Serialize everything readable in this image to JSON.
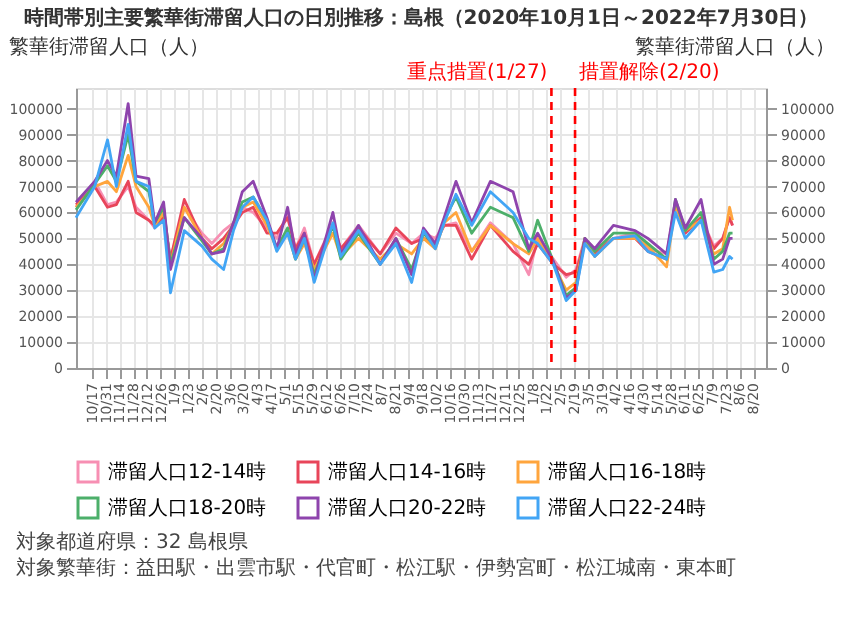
{
  "chart_data": {
    "type": "line",
    "title": "時間帯別主要繁華街滞留人口の日別推移：島根（2020年10月1日～2022年7月30日）",
    "ylabel": "繁華街滞留人口（人）",
    "y2label": "繁華街滞留人口（人）",
    "x": [
      "2020-10-01",
      "2020-10-20",
      "2020-11-02",
      "2020-11-11",
      "2020-11-23",
      "2020-12-01",
      "2020-12-14",
      "2020-12-20",
      "2020-12-29",
      "2021-01-05",
      "2021-01-19",
      "2021-02-06",
      "2021-02-16",
      "2021-02-28",
      "2021-03-10",
      "2021-03-19",
      "2021-03-30",
      "2021-04-13",
      "2021-04-23",
      "2021-05-04",
      "2021-05-12",
      "2021-05-21",
      "2021-05-31",
      "2021-06-19",
      "2021-06-27",
      "2021-07-15",
      "2021-08-06",
      "2021-08-22",
      "2021-09-07",
      "2021-09-19",
      "2021-10-01",
      "2021-10-10",
      "2021-10-22",
      "2021-11-07",
      "2021-11-26",
      "2021-12-19",
      "2022-01-04",
      "2022-01-13",
      "2022-01-29",
      "2022-02-11",
      "2022-02-21",
      "2022-03-02",
      "2022-03-12",
      "2022-03-31",
      "2022-04-22",
      "2022-05-05",
      "2022-05-24",
      "2022-06-02",
      "2022-06-12",
      "2022-06-28",
      "2022-07-11",
      "2022-07-20",
      "2022-07-27",
      "2022-07-30"
    ],
    "series": [
      {
        "name": "滞留人口12-14時",
        "color": "#f78fb3",
        "values": [
          62000,
          72000,
          63000,
          64000,
          70000,
          62000,
          57000,
          54000,
          60000,
          42000,
          62000,
          52000,
          48000,
          53000,
          56000,
          62000,
          60000,
          54000,
          50000,
          60000,
          46000,
          54000,
          40000,
          56000,
          46000,
          55000,
          44000,
          52000,
          48000,
          52000,
          50000,
          55000,
          56000,
          45000,
          56000,
          48000,
          36000,
          50000,
          42000,
          35000,
          38000,
          50000,
          46000,
          50000,
          52000,
          46000,
          44000,
          62000,
          54000,
          58000,
          47000,
          50000,
          58000,
          55000
        ]
      },
      {
        "name": "滞留人口14-16時",
        "color": "#e8455a",
        "values": [
          63000,
          70000,
          62000,
          63000,
          72000,
          60000,
          57000,
          55000,
          58000,
          42000,
          65000,
          50000,
          46000,
          50000,
          55000,
          60000,
          62000,
          52000,
          52000,
          58000,
          46000,
          52000,
          40000,
          55000,
          46000,
          54000,
          44000,
          54000,
          48000,
          50000,
          48000,
          55000,
          55000,
          42000,
          55000,
          45000,
          40000,
          48000,
          40000,
          36000,
          37000,
          49000,
          44000,
          50000,
          50000,
          45000,
          42000,
          64000,
          52000,
          58000,
          46000,
          50000,
          58000,
          55000
        ]
      },
      {
        "name": "滞留人口16-18時",
        "color": "#ffa53d",
        "values": [
          62000,
          70000,
          72000,
          68000,
          82000,
          70000,
          62000,
          55000,
          60000,
          40000,
          62000,
          50000,
          44000,
          48000,
          55000,
          62000,
          64000,
          55000,
          46000,
          52000,
          42000,
          48000,
          38000,
          52000,
          43000,
          50000,
          42000,
          48000,
          44000,
          50000,
          46000,
          56000,
          60000,
          45000,
          55000,
          48000,
          44000,
          50000,
          40000,
          30000,
          33000,
          50000,
          43000,
          50000,
          50000,
          47000,
          39000,
          63000,
          53000,
          57000,
          44000,
          46000,
          62000,
          57000
        ]
      },
      {
        "name": "滞留人口18-20時",
        "color": "#4caf6a",
        "values": [
          61000,
          71000,
          78000,
          72000,
          90000,
          72000,
          68000,
          56000,
          62000,
          40000,
          58000,
          49000,
          44000,
          46000,
          56000,
          64000,
          66000,
          57000,
          46000,
          54000,
          42000,
          50000,
          36000,
          55000,
          42000,
          52000,
          40000,
          50000,
          38000,
          52000,
          47000,
          57000,
          66000,
          52000,
          62000,
          58000,
          45000,
          57000,
          41000,
          28000,
          31000,
          50000,
          45000,
          52000,
          52000,
          48000,
          42000,
          65000,
          53000,
          60000,
          42000,
          45000,
          52000,
          52000
        ]
      },
      {
        "name": "滞留人口20-22時",
        "color": "#8e44ad",
        "values": [
          64000,
          72000,
          80000,
          74000,
          102000,
          74000,
          73000,
          56000,
          64000,
          38000,
          58000,
          50000,
          44000,
          45000,
          56000,
          68000,
          72000,
          58000,
          46000,
          62000,
          44000,
          52000,
          34000,
          60000,
          44000,
          55000,
          40000,
          50000,
          36000,
          54000,
          48000,
          58000,
          72000,
          56000,
          72000,
          68000,
          46000,
          52000,
          41000,
          27000,
          30000,
          50000,
          46000,
          55000,
          53000,
          50000,
          44000,
          65000,
          54000,
          65000,
          40000,
          42000,
          50000,
          50000
        ]
      },
      {
        "name": "滞留人口22-24時",
        "color": "#42a5f5",
        "values": [
          58000,
          70000,
          88000,
          70000,
          94000,
          72000,
          70000,
          54000,
          57000,
          29000,
          53000,
          47000,
          42000,
          38000,
          53000,
          62000,
          66000,
          57000,
          45000,
          52000,
          42000,
          50000,
          33000,
          56000,
          43000,
          53000,
          40000,
          48000,
          33000,
          53000,
          46000,
          56000,
          67000,
          55000,
          68000,
          60000,
          50000,
          48000,
          40000,
          26000,
          30000,
          48000,
          43000,
          50000,
          51000,
          45000,
          42000,
          60000,
          50000,
          57000,
          37000,
          38000,
          43000,
          42000
        ]
      }
    ],
    "xlim": [
      "2020-10-01",
      "2022-09-02"
    ],
    "xticks": [
      {
        "value": "2020-10-17",
        "label": "10/17"
      },
      {
        "value": "2020-10-31",
        "label": "10/31"
      },
      {
        "value": "2020-11-14",
        "label": "11/14"
      },
      {
        "value": "2020-11-28",
        "label": "11/28"
      },
      {
        "value": "2020-12-12",
        "label": "12/12"
      },
      {
        "value": "2020-12-26",
        "label": "12/26"
      },
      {
        "value": "2021-01-09",
        "label": "1/9"
      },
      {
        "value": "2021-01-23",
        "label": "1/23"
      },
      {
        "value": "2021-02-06",
        "label": "2/6"
      },
      {
        "value": "2021-02-20",
        "label": "2/20"
      },
      {
        "value": "2021-03-06",
        "label": "3/6"
      },
      {
        "value": "2021-03-20",
        "label": "3/20"
      },
      {
        "value": "2021-04-03",
        "label": "4/3"
      },
      {
        "value": "2021-04-17",
        "label": "4/17"
      },
      {
        "value": "2021-05-01",
        "label": "5/1"
      },
      {
        "value": "2021-05-15",
        "label": "5/15"
      },
      {
        "value": "2021-05-29",
        "label": "5/29"
      },
      {
        "value": "2021-06-12",
        "label": "6/12"
      },
      {
        "value": "2021-06-26",
        "label": "6/26"
      },
      {
        "value": "2021-07-10",
        "label": "7/10"
      },
      {
        "value": "2021-07-24",
        "label": "7/24"
      },
      {
        "value": "2021-08-07",
        "label": "8/7"
      },
      {
        "value": "2021-08-21",
        "label": "8/21"
      },
      {
        "value": "2021-09-04",
        "label": "9/4"
      },
      {
        "value": "2021-09-18",
        "label": "9/18"
      },
      {
        "value": "2021-10-02",
        "label": "10/2"
      },
      {
        "value": "2021-10-16",
        "label": "10/16"
      },
      {
        "value": "2021-10-30",
        "label": "10/30"
      },
      {
        "value": "2021-11-13",
        "label": "11/13"
      },
      {
        "value": "2021-11-27",
        "label": "11/27"
      },
      {
        "value": "2021-12-11",
        "label": "12/11"
      },
      {
        "value": "2021-12-25",
        "label": "12/25"
      },
      {
        "value": "2022-01-08",
        "label": "1/8"
      },
      {
        "value": "2022-01-22",
        "label": "1/22"
      },
      {
        "value": "2022-02-05",
        "label": "2/5"
      },
      {
        "value": "2022-02-19",
        "label": "2/19"
      },
      {
        "value": "2022-03-05",
        "label": "3/5"
      },
      {
        "value": "2022-03-19",
        "label": "3/19"
      },
      {
        "value": "2022-04-02",
        "label": "4/2"
      },
      {
        "value": "2022-04-16",
        "label": "4/16"
      },
      {
        "value": "2022-04-30",
        "label": "4/30"
      },
      {
        "value": "2022-05-14",
        "label": "5/14"
      },
      {
        "value": "2022-05-28",
        "label": "5/28"
      },
      {
        "value": "2022-06-11",
        "label": "6/11"
      },
      {
        "value": "2022-06-25",
        "label": "6/25"
      },
      {
        "value": "2022-07-09",
        "label": "7/9"
      },
      {
        "value": "2022-07-23",
        "label": "7/23"
      },
      {
        "value": "2022-08-06",
        "label": "8/6"
      },
      {
        "value": "2022-08-20",
        "label": "8/20"
      }
    ],
    "ylim": [
      0,
      108000
    ],
    "yticks": [
      0,
      10000,
      20000,
      30000,
      40000,
      50000,
      60000,
      70000,
      80000,
      90000,
      100000
    ],
    "y2lim": [
      0,
      108000
    ],
    "y2ticks": [
      0,
      10000,
      20000,
      30000,
      40000,
      50000,
      60000,
      70000,
      80000,
      90000,
      100000
    ],
    "ref_lines": [
      {
        "axis": "x",
        "value": "2022-01-27",
        "label": "重点措置(1/27)",
        "color": "#ff0000",
        "line_style": "dashed"
      },
      {
        "axis": "x",
        "value": "2022-02-20",
        "label": "措置解除(2/20)",
        "color": "#ff0000",
        "line_style": "dashed"
      }
    ],
    "annotations": [
      "対象都道府県：32 島根県",
      "対象繁華街：益田駅・出雲市駅・代官町・松江駅・伊勢宮町・松江城南・東本町"
    ],
    "grid": true,
    "legend": "bottom",
    "marker": "none",
    "line_style": "solid"
  }
}
